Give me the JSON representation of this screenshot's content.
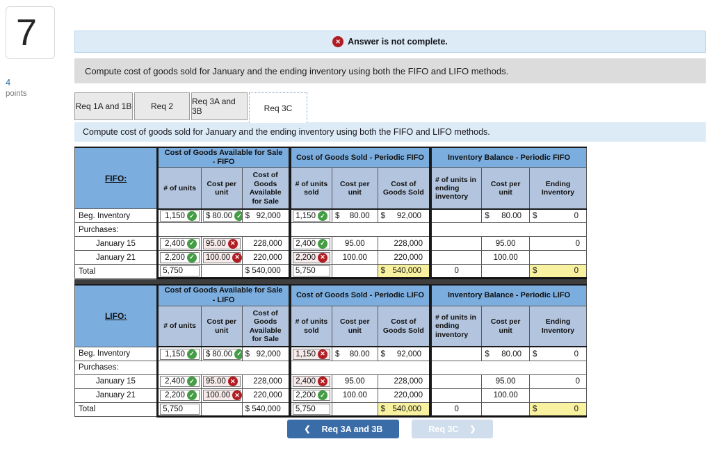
{
  "question": {
    "number": "7",
    "points_value": "4",
    "points_label": "points"
  },
  "alert": {
    "text": "Answer is not complete."
  },
  "instruction": "Compute cost of goods sold for January and the ending inventory using both the FIFO and LIFO methods.",
  "tabs": [
    {
      "label": "Req 1A and 1B",
      "active": false
    },
    {
      "label": "Req 2",
      "active": false
    },
    {
      "label": "Req 3A and 3B",
      "active": false
    },
    {
      "label": "Req 3C",
      "active": true
    }
  ],
  "icons": {
    "error": "✕",
    "check": "✓",
    "x": "✕",
    "chevron_left": "❮",
    "chevron_right": "❯"
  },
  "colors": {
    "correct_green": "#449d44",
    "incorrect_red": "#b01d23",
    "highlight_yellow": "#f8f2a0",
    "header_blue": "#7badde",
    "subheader_blue": "#b3c5de",
    "alert_blue": "#ddebf7"
  },
  "tables": [
    {
      "id": "fifo",
      "label": "FIFO:",
      "groups": [
        {
          "title": "Cost of Goods Available for Sale - FIFO",
          "cols": [
            "# of units",
            "Cost per unit",
            "Cost of Goods Available for Sale"
          ]
        },
        {
          "title": "Cost of Goods Sold - Periodic FIFO",
          "cols": [
            "# of units sold",
            "Cost per unit",
            "Cost of Goods Sold"
          ]
        },
        {
          "title": "Inventory Balance - Periodic FIFO",
          "cols": [
            "# of units in ending inventory",
            "Cost per unit",
            "Ending Inventory"
          ]
        }
      ],
      "rows": [
        {
          "label": "Beg. Inventory",
          "cells": [
            {
              "v": "1,150",
              "icon": "check",
              "box": true
            },
            {
              "d": "$",
              "v": "80.00",
              "icon": "check",
              "box": true
            },
            {
              "d": "$",
              "v": "92,000"
            },
            {
              "v": "1,150",
              "icon": "check",
              "box": true
            },
            {
              "d": "$",
              "v": "80.00"
            },
            {
              "d": "$",
              "v": "92,000"
            },
            null,
            {
              "d": "$",
              "v": "80.00"
            },
            {
              "d": "$",
              "v": "0"
            }
          ]
        },
        {
          "label": "Purchases:",
          "merged": true
        },
        {
          "label": "January 15",
          "indent": true,
          "cells": [
            {
              "v": "2,400",
              "icon": "check",
              "box": true
            },
            {
              "v": "95.00",
              "icon": "x",
              "bg": "pink",
              "box": true
            },
            {
              "v": "228,000"
            },
            {
              "v": "2,400",
              "icon": "check",
              "box": true
            },
            {
              "v": "95.00",
              "align": "c"
            },
            {
              "v": "228,000"
            },
            null,
            {
              "v": "95.00",
              "align": "c"
            },
            {
              "v": "0"
            }
          ]
        },
        {
          "label": "January 21",
          "indent": true,
          "cells": [
            {
              "v": "2,200",
              "icon": "check",
              "box": true
            },
            {
              "v": "100.00",
              "icon": "x",
              "bg": "pink",
              "box": true
            },
            {
              "v": "220,000"
            },
            {
              "v": "2,200",
              "icon": "x",
              "bg": "pink",
              "box": true
            },
            {
              "v": "100.00",
              "align": "c"
            },
            {
              "v": "220,000"
            },
            null,
            {
              "v": "100.00",
              "align": "c"
            },
            null
          ]
        },
        {
          "label": "Total",
          "total": true,
          "cells": [
            {
              "v": "5,750",
              "align": "l",
              "box": true
            },
            null,
            {
              "d": "$",
              "v": "540,000"
            },
            {
              "v": "5,750",
              "align": "l",
              "box": true
            },
            null,
            {
              "d": "$",
              "v": "540,000",
              "bg": "yellow"
            },
            {
              "v": "0",
              "align": "c"
            },
            null,
            {
              "d": "$",
              "v": "0",
              "bg": "yellow"
            }
          ]
        }
      ]
    },
    {
      "id": "lifo",
      "label": "LIFO:",
      "groups": [
        {
          "title": "Cost of Goods Available for Sale - LIFO",
          "cols": [
            "# of units",
            "Cost per unit",
            "Cost of Goods Available for Sale"
          ]
        },
        {
          "title": "Cost of Goods Sold - Periodic LIFO",
          "cols": [
            "# of units sold",
            "Cost per unit",
            "Cost of Goods Sold"
          ]
        },
        {
          "title": "Inventory Balance - Periodic LIFO",
          "cols": [
            "# of units in ending inventory",
            "Cost per unit",
            "Ending Inventory"
          ]
        }
      ],
      "rows": [
        {
          "label": "Beg. Inventory",
          "cells": [
            {
              "v": "1,150",
              "icon": "check",
              "box": true
            },
            {
              "d": "$",
              "v": "80.00",
              "icon": "check",
              "box": true
            },
            {
              "d": "$",
              "v": "92,000"
            },
            {
              "v": "1,150",
              "icon": "x",
              "bg": "pink",
              "box": true
            },
            {
              "d": "$",
              "v": "80.00"
            },
            {
              "d": "$",
              "v": "92,000"
            },
            null,
            {
              "d": "$",
              "v": "80.00"
            },
            {
              "d": "$",
              "v": "0"
            }
          ]
        },
        {
          "label": "Purchases:",
          "merged": true
        },
        {
          "label": "January 15",
          "indent": true,
          "cells": [
            {
              "v": "2,400",
              "icon": "check",
              "box": true
            },
            {
              "v": "95.00",
              "icon": "x",
              "bg": "pink",
              "box": true
            },
            {
              "v": "228,000"
            },
            {
              "v": "2,400",
              "icon": "x",
              "bg": "pink",
              "box": true
            },
            {
              "v": "95.00",
              "align": "c"
            },
            {
              "v": "228,000"
            },
            null,
            {
              "v": "95.00",
              "align": "c"
            },
            {
              "v": "0"
            }
          ]
        },
        {
          "label": "January 21",
          "indent": true,
          "cells": [
            {
              "v": "2,200",
              "icon": "check",
              "box": true
            },
            {
              "v": "100.00",
              "icon": "x",
              "bg": "pink",
              "box": true
            },
            {
              "v": "220,000"
            },
            {
              "v": "2,200",
              "icon": "check",
              "box": true
            },
            {
              "v": "100.00",
              "align": "c"
            },
            {
              "v": "220,000"
            },
            null,
            {
              "v": "100.00",
              "align": "c"
            },
            null
          ]
        },
        {
          "label": "Total",
          "total": true,
          "cells": [
            {
              "v": "5,750",
              "align": "l",
              "box": true
            },
            null,
            {
              "d": "$",
              "v": "540,000"
            },
            {
              "v": "5,750",
              "align": "l",
              "box": true
            },
            null,
            {
              "d": "$",
              "v": "540,000",
              "bg": "yellow"
            },
            {
              "v": "0",
              "align": "c"
            },
            null,
            {
              "d": "$",
              "v": "0",
              "bg": "yellow"
            }
          ]
        }
      ]
    }
  ],
  "footer": {
    "prev_label": "Req 3A and 3B",
    "next_label": "Req 3C"
  }
}
